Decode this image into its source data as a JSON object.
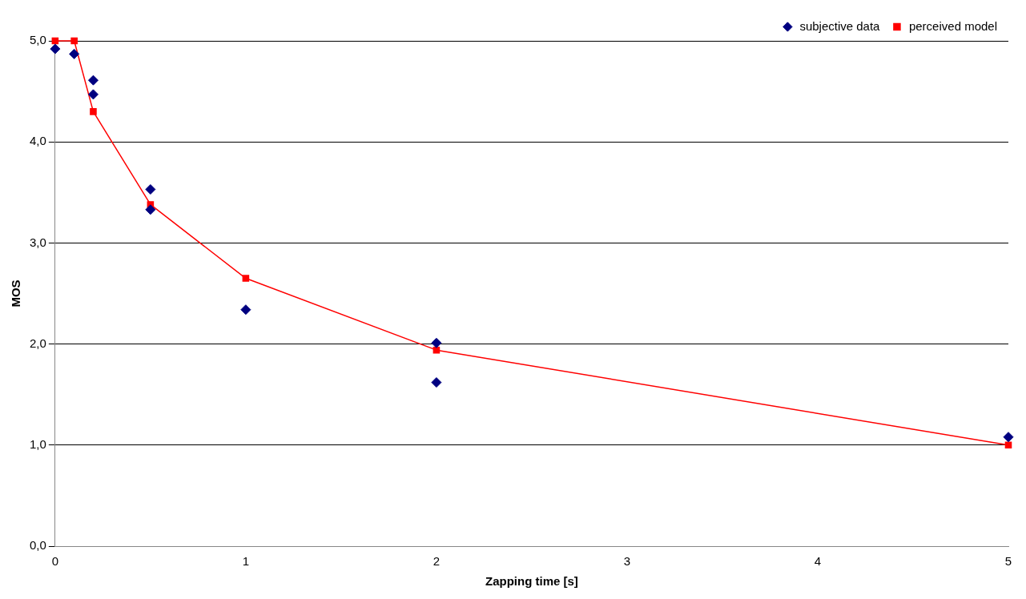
{
  "chart_data": {
    "type": "scatter",
    "xlabel": "Zapping time [s]",
    "ylabel": "MOS",
    "xlim": [
      0,
      5
    ],
    "xticks": [
      0,
      1,
      2,
      3,
      4,
      5
    ],
    "ylim": [
      0,
      5
    ],
    "yticks": [
      {
        "value": 0,
        "label": "0,0"
      },
      {
        "value": 1,
        "label": "1,0"
      },
      {
        "value": 2,
        "label": "2,0"
      },
      {
        "value": 3,
        "label": "3,0"
      },
      {
        "value": 4,
        "label": "4,0"
      },
      {
        "value": 5,
        "label": "5,0"
      }
    ],
    "grid": "y",
    "legend": "top right",
    "series": [
      {
        "name": "subjective data",
        "type": "scatter",
        "marker": "diamond",
        "color": "#000080",
        "x": [
          0,
          0.1,
          0.2,
          0.2,
          0.5,
          0.5,
          1,
          2,
          2,
          5
        ],
        "values": [
          4.92,
          4.87,
          4.61,
          4.47,
          3.53,
          3.33,
          2.34,
          2.01,
          1.62,
          1.08
        ]
      },
      {
        "name": "perceived model",
        "type": "line",
        "marker": "square",
        "line_style": "solid",
        "color": "#ff0000",
        "x": [
          0,
          0.1,
          0.2,
          0.5,
          1,
          2,
          5
        ],
        "values": [
          5,
          5,
          4.3,
          3.38,
          2.65,
          1.94,
          1
        ]
      }
    ]
  }
}
